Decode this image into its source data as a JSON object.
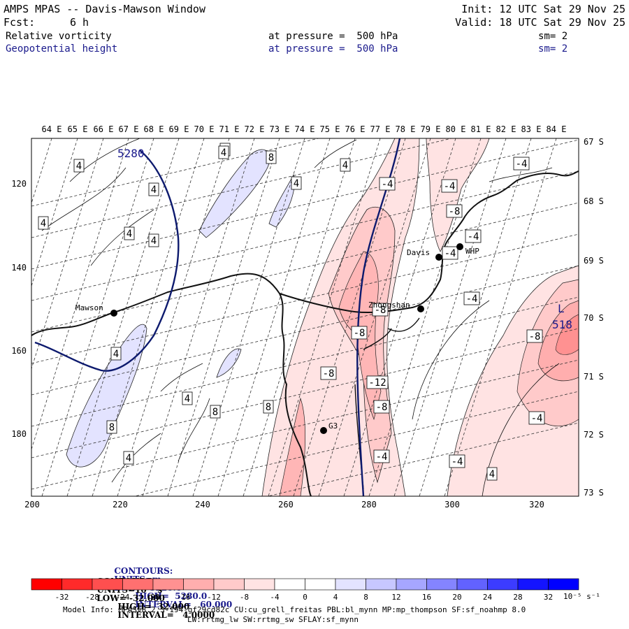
{
  "header": {
    "title": "AMPS MPAS -- Davis-Mawson Window",
    "forecast_label": "Fcst:",
    "forecast_value": "6 h",
    "init": "Init: 12 UTC Sat 29 Nov 25",
    "valid": "Valid: 18 UTC Sat 29 Nov 25",
    "field1": {
      "name": "Relative vorticity",
      "level": "at pressure =  500 hPa",
      "smooth": "sm= 2"
    },
    "field2": {
      "name": "Geopotential height",
      "level": "at pressure =  500 hPa",
      "smooth": "sm= 2"
    }
  },
  "map": {
    "lon_labels": [
      "64 E",
      "65 E",
      "66 E",
      "67 E",
      "68 E",
      "69 E",
      "70 E",
      "71 E",
      "72 E",
      "73 E",
      "74 E",
      "75 E",
      "76 E",
      "77 E",
      "78 E",
      "79 E",
      "80 E",
      "81 E",
      "82 E",
      "83 E",
      "84 E"
    ],
    "lat_labels": [
      "67 S",
      "68 S",
      "69 S",
      "70 S",
      "71 S",
      "72 S",
      "73 S"
    ],
    "x_ticks": [
      "200",
      "220",
      "240",
      "260",
      "280",
      "300",
      "320"
    ],
    "y_ticks": [
      "120",
      "140",
      "160",
      "180"
    ],
    "stations": [
      {
        "name": "Mawson"
      },
      {
        "name": "Davis"
      },
      {
        "name": "WHP"
      },
      {
        "name": "Zhongshan"
      },
      {
        "name": "G3"
      }
    ],
    "height_contour_labels": [
      "5280"
    ],
    "low_center": {
      "symbol": "L",
      "value": "518"
    },
    "vorticity_labels": [
      "4",
      "4",
      "8",
      "4",
      "8",
      "4",
      "4",
      "4",
      "4",
      "4",
      "8",
      "8",
      "4",
      "8",
      "4",
      "4",
      "-4",
      "-4",
      "-8",
      "-4",
      "-8",
      "-4",
      "-4",
      "-8",
      "-8",
      "-4",
      "-12",
      "-8",
      "-4",
      "-4",
      "4",
      "-8",
      "-4"
    ]
  },
  "contour_info": {
    "line1": {
      "label": "CONTOURS:",
      "units": "UNITS=m",
      "low": "LOW=  5220.0",
      "high": "HIGH=  5280.0",
      "interval": "INTERVAL=   60.000"
    },
    "line2": {
      "label": "CONTOURS:",
      "units": "UNITS=10⁻⁵ s⁻¹",
      "low": "LOW= -32.000",
      "high": "HIGH=  32.000",
      "interval": "INTERVAL=   4.0000"
    }
  },
  "colorbar": {
    "labels": [
      "-32",
      "-28",
      "-24",
      "-20",
      "-16",
      "-12",
      "-8",
      "-4",
      "0",
      "4",
      "8",
      "12",
      "16",
      "20",
      "24",
      "28",
      "32"
    ],
    "unit": "10⁻⁵ s⁻¹",
    "colors": [
      "#ff0000",
      "#ff2a2a",
      "#ff4f4f",
      "#ff7070",
      "#ff9191",
      "#ffaeae",
      "#ffcaca",
      "#ffe3e3",
      "#ffffff",
      "#ffffff",
      "#e3e3ff",
      "#c7c7ff",
      "#a6a6ff",
      "#8484ff",
      "#6262ff",
      "#3c3cff",
      "#1414ff"
    ]
  },
  "footer": {
    "line1": "Model Info: MPASv8.2.3-194-gf29cd82c CU:cu_grell_freitas PBL:bl_mynn MP:mp_thompson SF:sf_noahmp 8.0",
    "line2": "LW:rrtmg_lw SW:rrtmg_sw SFLAY:sf_mynn"
  }
}
